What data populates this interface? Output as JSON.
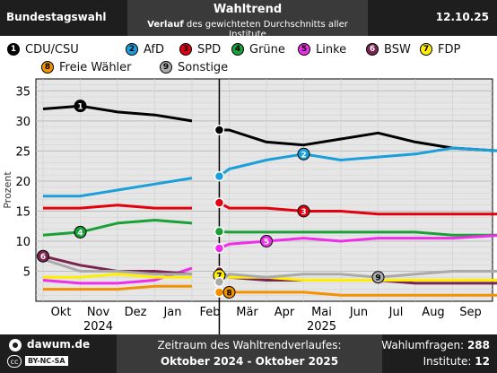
{
  "header": {
    "left": "Bundestagswahl",
    "title": "Wahltrend",
    "subtitle_bold": "Verlauf",
    "subtitle_rest": " des gewichteten Durchschnitts aller Institute",
    "date": "12.10.25"
  },
  "legend": [
    {
      "num": "1",
      "name": "CDU/CSU",
      "color": "#000000"
    },
    {
      "num": "2",
      "name": "AfD",
      "color": "#1a9fdb"
    },
    {
      "num": "3",
      "name": "SPD",
      "color": "#e3000f"
    },
    {
      "num": "4",
      "name": "Grüne",
      "color": "#1aa037"
    },
    {
      "num": "5",
      "name": "Linke",
      "color": "#ee2ee8"
    },
    {
      "num": "6",
      "name": "BSW",
      "color": "#7b2450"
    },
    {
      "num": "7",
      "name": "FDP",
      "color": "#ffee00"
    },
    {
      "num": "8",
      "name": "Freie Wähler",
      "color": "#f39200"
    },
    {
      "num": "9",
      "name": "Sonstige",
      "color": "#aaaaaa"
    }
  ],
  "chart_data": {
    "type": "line",
    "ylabel": "Prozent",
    "ylim": [
      0,
      37
    ],
    "yticks": [
      5,
      10,
      15,
      20,
      25,
      30,
      35
    ],
    "x_ticks": [
      "Okt",
      "Nov",
      "Dez",
      "Jan",
      "Feb",
      "Mär",
      "Apr",
      "Mai",
      "Jun",
      "Jul",
      "Aug",
      "Sep"
    ],
    "x_years": [
      "2024",
      "2025"
    ],
    "grid": true,
    "election_marker": "Feb",
    "election_values": {
      "CDU/CSU": 28.5,
      "AfD": 20.8,
      "SPD": 16.4,
      "Grüne": 11.6,
      "Linke": 8.8,
      "BSW": 5.0,
      "FDP": 4.3,
      "Freie Wähler": 1.5,
      "Sonstige": 3.2
    },
    "series": [
      {
        "name": "CDU/CSU",
        "color": "#000000",
        "x": [
          "Okt 1",
          "Nov 1",
          "Dez 1",
          "Jan 1",
          "Feb 1",
          "Feb 23",
          "Mär 1",
          "Apr 1",
          "Mai 1",
          "Jun 1",
          "Jul 1",
          "Aug 1",
          "Sep 1",
          "Okt 10"
        ],
        "y": [
          32.0,
          32.5,
          31.5,
          31.0,
          30.0,
          28.5,
          28.5,
          26.5,
          26.0,
          27.0,
          28.0,
          26.5,
          25.5,
          25.0
        ]
      },
      {
        "name": "AfD",
        "color": "#1a9fdb",
        "x": [
          "Okt 1",
          "Nov 1",
          "Dez 1",
          "Jan 1",
          "Feb 1",
          "Feb 23",
          "Mär 1",
          "Apr 1",
          "Mai 1",
          "Jun 1",
          "Jul 1",
          "Aug 1",
          "Sep 1",
          "Okt 10"
        ],
        "y": [
          17.5,
          17.5,
          18.5,
          19.5,
          20.5,
          20.8,
          22.0,
          23.5,
          24.5,
          23.5,
          24.0,
          24.5,
          25.5,
          25.0
        ]
      },
      {
        "name": "SPD",
        "color": "#e3000f",
        "x": [
          "Okt 1",
          "Nov 1",
          "Dez 1",
          "Jan 1",
          "Feb 1",
          "Feb 23",
          "Mär 1",
          "Apr 1",
          "Mai 1",
          "Jun 1",
          "Jul 1",
          "Aug 1",
          "Sep 1",
          "Okt 10"
        ],
        "y": [
          15.5,
          15.5,
          16.0,
          15.5,
          15.5,
          16.4,
          15.5,
          15.5,
          15.0,
          15.0,
          14.5,
          14.5,
          14.5,
          14.5
        ]
      },
      {
        "name": "Grüne",
        "color": "#1aa037",
        "x": [
          "Okt 1",
          "Nov 1",
          "Dez 1",
          "Jan 1",
          "Feb 1",
          "Feb 23",
          "Mär 1",
          "Apr 1",
          "Mai 1",
          "Jun 1",
          "Jul 1",
          "Aug 1",
          "Sep 1",
          "Okt 10"
        ],
        "y": [
          11.0,
          11.5,
          13.0,
          13.5,
          13.0,
          11.6,
          11.5,
          11.5,
          11.5,
          11.5,
          11.5,
          11.5,
          11.0,
          11.0
        ]
      },
      {
        "name": "Linke",
        "color": "#ee2ee8",
        "x": [
          "Okt 1",
          "Nov 1",
          "Dez 1",
          "Jan 1",
          "Feb 1",
          "Feb 23",
          "Mär 1",
          "Apr 1",
          "Mai 1",
          "Jun 1",
          "Jul 1",
          "Aug 1",
          "Sep 1",
          "Okt 10"
        ],
        "y": [
          3.5,
          3.0,
          3.0,
          3.5,
          5.5,
          8.8,
          9.5,
          10.0,
          10.5,
          10.0,
          10.5,
          10.5,
          10.5,
          11.0
        ]
      },
      {
        "name": "BSW",
        "color": "#7b2450",
        "x": [
          "Okt 1",
          "Nov 1",
          "Dez 1",
          "Jan 1",
          "Feb 1",
          "Feb 23",
          "Mär 1",
          "Apr 1",
          "Mai 1",
          "Jun 1",
          "Jul 1",
          "Aug 1",
          "Sep 1",
          "Okt 10"
        ],
        "y": [
          7.5,
          6.0,
          5.0,
          5.0,
          4.5,
          5.0,
          4.0,
          3.5,
          3.5,
          3.5,
          3.5,
          3.0,
          3.0,
          3.0
        ]
      },
      {
        "name": "FDP",
        "color": "#ffee00",
        "x": [
          "Okt 1",
          "Nov 1",
          "Dez 1",
          "Jan 1",
          "Feb 1",
          "Feb 23",
          "Mär 1",
          "Apr 1",
          "Mai 1",
          "Jun 1",
          "Jul 1",
          "Aug 1",
          "Sep 1",
          "Okt 10"
        ],
        "y": [
          4.0,
          4.0,
          4.5,
          4.0,
          4.0,
          4.3,
          4.0,
          4.0,
          3.5,
          3.5,
          3.5,
          3.5,
          3.5,
          3.5
        ]
      },
      {
        "name": "Freie Wähler",
        "color": "#f39200",
        "x": [
          "Okt 1",
          "Nov 1",
          "Dez 1",
          "Jan 1",
          "Feb 1",
          "Feb 23",
          "Mär 1",
          "Apr 1",
          "Mai 1",
          "Jun 1",
          "Jul 1",
          "Aug 1",
          "Sep 1",
          "Okt 10"
        ],
        "y": [
          2.0,
          2.0,
          2.0,
          2.5,
          2.5,
          1.5,
          1.5,
          1.5,
          1.5,
          1.0,
          1.0,
          1.0,
          1.0,
          1.0
        ]
      },
      {
        "name": "Sonstige",
        "color": "#aaaaaa",
        "x": [
          "Okt 1",
          "Nov 1",
          "Dez 1",
          "Jan 1",
          "Feb 1",
          "Feb 23",
          "Mär 1",
          "Apr 1",
          "Mai 1",
          "Jun 1",
          "Jul 1",
          "Aug 1",
          "Sep 1",
          "Okt 10"
        ],
        "y": [
          7.0,
          5.0,
          5.0,
          4.5,
          4.5,
          3.2,
          4.5,
          4.0,
          4.5,
          4.5,
          4.0,
          4.5,
          5.0,
          5.0
        ]
      }
    ]
  },
  "footer": {
    "site": "dawum.de",
    "license": "BY-NC-SA",
    "period_label": "Zeitraum des Wahltrendverlaufes:",
    "period_value": "Oktober 2024 - Oktober 2025",
    "polls_label": "Wahlumfragen:",
    "polls_value": "288",
    "institutes_label": "Institute:",
    "institutes_value": "12"
  }
}
